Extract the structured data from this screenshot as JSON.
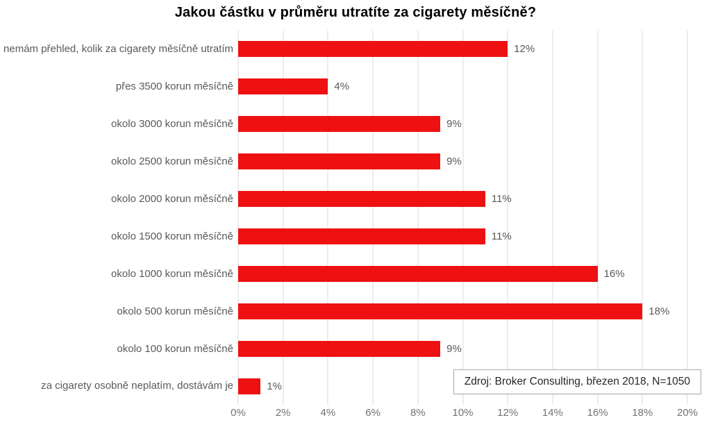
{
  "title": "Jakou částku v průměru utratíte za cigarety měsíčně?",
  "source_note": "Zdroj: Broker Consulting, březen 2018, N=1050",
  "colors": {
    "bar": "#ee1111",
    "gridline": "#d9d9d9",
    "category_label": "#595959",
    "value_label": "#595959",
    "tick_label": "#737373",
    "title": "#000000",
    "source_border": "#a6a6a6"
  },
  "chart_data": {
    "type": "bar",
    "orientation": "horizontal",
    "title": "Jakou částku v průměru utratíte za cigarety měsíčně?",
    "categories": [
      "nemám přehled, kolik za cigarety měsíčně utratím",
      "přes 3500 korun měsíčně",
      "okolo 3000 korun měsíčně",
      "okolo 2500 korun měsíčně",
      "okolo 2000 korun měsíčně",
      "okolo 1500 korun měsíčně",
      "okolo 1000 korun měsíčně",
      "okolo 500 korun měsíčně",
      "okolo 100 korun měsíčně",
      "za cigarety osobně neplatím, dostávám je"
    ],
    "values": [
      12,
      4,
      9,
      9,
      11,
      11,
      16,
      18,
      9,
      1
    ],
    "value_labels": [
      "12%",
      "4%",
      "9%",
      "9%",
      "11%",
      "11%",
      "16%",
      "18%",
      "9%",
      "1%"
    ],
    "xlabel": "",
    "ylabel": "",
    "xlim": [
      0,
      20
    ],
    "x_tick_step": 2,
    "x_ticks": [
      "0%",
      "2%",
      "4%",
      "6%",
      "8%",
      "10%",
      "12%",
      "14%",
      "16%",
      "18%",
      "20%"
    ],
    "grid": "vertical",
    "legend": "none",
    "annotation": "Zdroj: Broker Consulting, březen 2018, N=1050"
  }
}
